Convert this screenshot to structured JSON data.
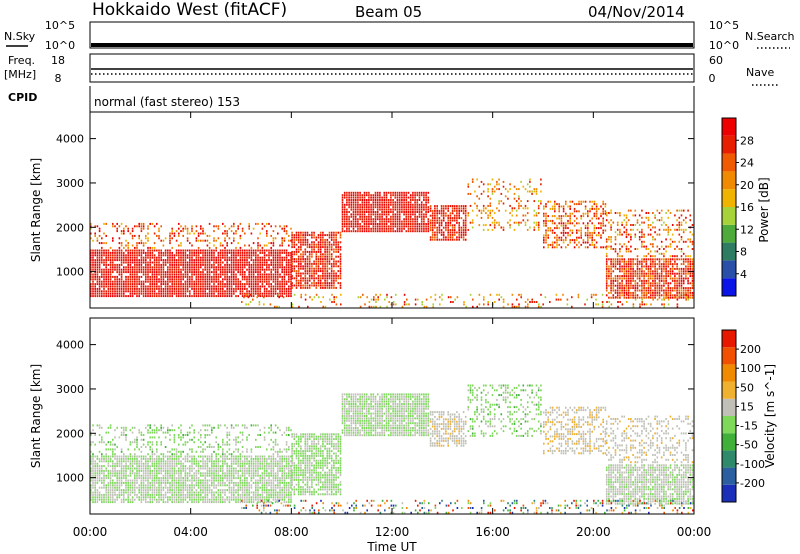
{
  "header": {
    "station": "Hokkaido West (fitACF)",
    "beam": "Beam 05",
    "date": "04/Nov/2014"
  },
  "top_panels": {
    "nsky_label": "N.Sky",
    "nsky_ticks": [
      "10^5",
      "10^0"
    ],
    "nsearch_label": "N.Search",
    "nsearch_ticks": [
      "10^5",
      "10^0"
    ],
    "freq_label_1": "Freq.",
    "freq_label_2": "[MHz]",
    "freq_ticks": [
      "18",
      "8"
    ],
    "nave_label": "Nave",
    "nave_ticks": [
      "60",
      "0"
    ],
    "cpid_label": "CPID",
    "cpid_text": "normal (fast stereo) 153"
  },
  "x_axis": {
    "label": "Time UT",
    "ticks": [
      "00:00",
      "04:00",
      "08:00",
      "12:00",
      "16:00",
      "20:00",
      "00:00"
    ]
  },
  "power_panel": {
    "ylabel": "Slant Range [km]",
    "yticks": [
      "4000",
      "3000",
      "2000",
      "1000"
    ],
    "colorbar_label": "Power [dB]",
    "colorbar_ticks": [
      "28",
      "24",
      "20",
      "16",
      "12",
      "8",
      "4"
    ],
    "colors": [
      "#0a14e6",
      "#2a4fa8",
      "#2e7d62",
      "#4faa3c",
      "#a8d23a",
      "#f0b400",
      "#f08a00",
      "#f05a00",
      "#e81e00",
      "#ee0000"
    ]
  },
  "velocity_panel": {
    "ylabel": "Slant Range [km]",
    "yticks": [
      "4000",
      "3000",
      "2000",
      "1000"
    ],
    "colorbar_label": "Velocity [m s^-1]",
    "colorbar_ticks": [
      "200",
      "100",
      "50",
      "15",
      "-15",
      "-50",
      "-100",
      "-200"
    ],
    "colors": [
      "#1c2fb8",
      "#2c5fa0",
      "#2e8a6a",
      "#3fb03a",
      "#7ed85a",
      "#c0c0b8",
      "#f0b030",
      "#f08a00",
      "#f05000",
      "#e81800"
    ]
  },
  "chart_data": [
    {
      "type": "heatmap",
      "title": "Power [dB]",
      "xlabel": "Time UT",
      "ylabel": "Slant Range [km]",
      "xlim": [
        "00:00",
        "24:00"
      ],
      "ylim": [
        180,
        4600
      ],
      "color_range": [
        0,
        30
      ],
      "legend": "right",
      "scatter_bands": [
        {
          "t0": 0.0,
          "t1": 8.0,
          "r0": 420,
          "r1": 1500,
          "value_range": [
            24,
            30
          ],
          "density": 0.9
        },
        {
          "t0": 0.0,
          "t1": 8.0,
          "r0": 1500,
          "r1": 2100,
          "value_range": [
            16,
            30
          ],
          "density": 0.25
        },
        {
          "t0": 8.0,
          "t1": 10.0,
          "r0": 600,
          "r1": 1900,
          "value_range": [
            22,
            30
          ],
          "density": 0.8
        },
        {
          "t0": 10.0,
          "t1": 13.5,
          "r0": 1900,
          "r1": 2800,
          "value_range": [
            24,
            30
          ],
          "density": 0.9
        },
        {
          "t0": 13.5,
          "t1": 15.0,
          "r0": 1700,
          "r1": 2500,
          "value_range": [
            22,
            30
          ],
          "density": 0.8
        },
        {
          "t0": 15.0,
          "t1": 18.0,
          "r0": 1900,
          "r1": 3100,
          "value_range": [
            14,
            26
          ],
          "density": 0.25
        },
        {
          "t0": 18.0,
          "t1": 20.5,
          "r0": 1500,
          "r1": 2600,
          "value_range": [
            16,
            30
          ],
          "density": 0.5
        },
        {
          "t0": 20.5,
          "t1": 24.0,
          "r0": 400,
          "r1": 1300,
          "value_range": [
            20,
            30
          ],
          "density": 0.85
        },
        {
          "t0": 20.5,
          "t1": 24.0,
          "r0": 1300,
          "r1": 2400,
          "value_range": [
            14,
            30
          ],
          "density": 0.3
        },
        {
          "t0": 6.0,
          "t1": 24.0,
          "r0": 200,
          "r1": 500,
          "value_range": [
            12,
            28
          ],
          "density": 0.2
        }
      ]
    },
    {
      "type": "heatmap",
      "title": "Velocity [m s^-1]",
      "xlabel": "Time UT",
      "ylabel": "Slant Range [km]",
      "xlim": [
        "00:00",
        "24:00"
      ],
      "ylim": [
        180,
        4600
      ],
      "color_range": [
        -250,
        250
      ],
      "legend": "right",
      "scatter_bands": [
        {
          "t0": 0.0,
          "t1": 8.0,
          "r0": 420,
          "r1": 1500,
          "value_range": [
            -30,
            40
          ],
          "density": 0.85
        },
        {
          "t0": 0.0,
          "t1": 8.0,
          "r0": 1500,
          "r1": 2200,
          "value_range": [
            -60,
            30
          ],
          "density": 0.3
        },
        {
          "t0": 8.0,
          "t1": 10.0,
          "r0": 600,
          "r1": 2000,
          "value_range": [
            -40,
            20
          ],
          "density": 0.8
        },
        {
          "t0": 10.0,
          "t1": 13.5,
          "r0": 1900,
          "r1": 2900,
          "value_range": [
            -20,
            20
          ],
          "density": 0.9
        },
        {
          "t0": 13.5,
          "t1": 15.0,
          "r0": 1700,
          "r1": 2500,
          "value_range": [
            10,
            60
          ],
          "density": 0.7
        },
        {
          "t0": 15.0,
          "t1": 18.0,
          "r0": 1900,
          "r1": 3100,
          "value_range": [
            -60,
            20
          ],
          "density": 0.3
        },
        {
          "t0": 18.0,
          "t1": 20.5,
          "r0": 1500,
          "r1": 2600,
          "value_range": [
            20,
            70
          ],
          "density": 0.5
        },
        {
          "t0": 20.5,
          "t1": 24.0,
          "r0": 400,
          "r1": 1300,
          "value_range": [
            -20,
            50
          ],
          "density": 0.85
        },
        {
          "t0": 20.5,
          "t1": 24.0,
          "r0": 1300,
          "r1": 2400,
          "value_range": [
            10,
            60
          ],
          "density": 0.35
        },
        {
          "t0": 6.0,
          "t1": 24.0,
          "r0": 200,
          "r1": 500,
          "value_range": [
            -250,
            250
          ],
          "density": 0.25
        }
      ]
    }
  ]
}
